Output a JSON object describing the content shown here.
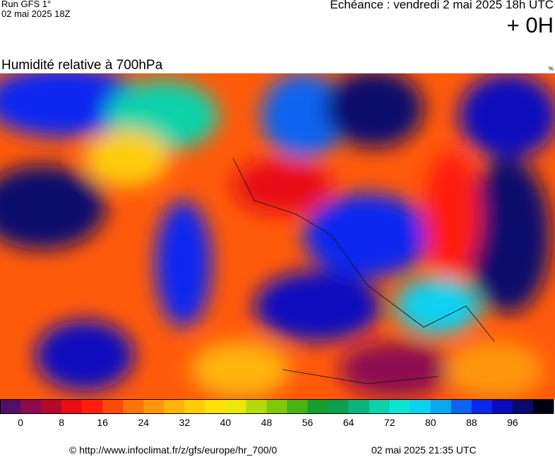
{
  "header": {
    "run": "Run GFS 1°",
    "run_date": "02 mai 2025 18Z",
    "forecast": "Echéance : vendredi 2 mai 2025 18h UTC",
    "lead": "+ 0H"
  },
  "map": {
    "title": "Humidité relative à 700hPa",
    "unit": "%"
  },
  "legend": {
    "colors": [
      "#50106a",
      "#8c0a50",
      "#b40a2a",
      "#e80c14",
      "#ff1e0a",
      "#ff4a0a",
      "#ff740a",
      "#ff960a",
      "#ffb40a",
      "#ffcc0a",
      "#ffe00a",
      "#e8e80a",
      "#b4dc0a",
      "#82c80a",
      "#46b414",
      "#14a028",
      "#0aa050",
      "#0ab47e",
      "#0ad2aa",
      "#0ae6d2",
      "#0ad2f0",
      "#0aa8f0",
      "#0a64f0",
      "#0a28f0",
      "#0a0abe",
      "#0a0a6e",
      "#000014"
    ],
    "ticks": [
      0,
      8,
      16,
      24,
      32,
      40,
      48,
      56,
      64,
      72,
      80,
      88,
      96
    ]
  },
  "footer": {
    "source": "© http://www.infoclimat.fr/z/gfs/europe/hr_700/0",
    "generated": "02 mai 2025 21:35 UTC"
  }
}
